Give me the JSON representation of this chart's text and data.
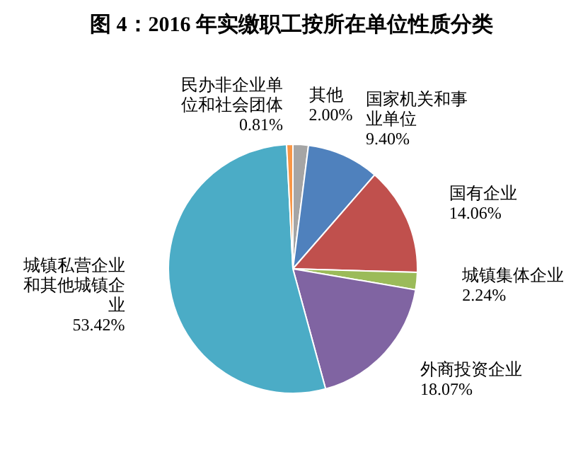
{
  "chart_data": {
    "type": "pie",
    "title": "图 4：2016 年实缴职工按所在单位性质分类",
    "categories": [
      "其他",
      "国家机关和事业单位",
      "国有企业",
      "城镇集体企业",
      "外商投资企业",
      "城镇私营企业和其他城镇企业",
      "民办非企业单位和社会团体"
    ],
    "values": [
      2.0,
      9.4,
      14.06,
      2.24,
      18.07,
      53.42,
      0.81
    ],
    "value_labels": [
      "2.00%",
      "9.40%",
      "14.06%",
      "2.24%",
      "18.07%",
      "53.42%",
      "0.81%"
    ],
    "colors": [
      "#a5a5a5",
      "#4f81bd",
      "#c0504d",
      "#9bbb59",
      "#8064a2",
      "#4bacc6",
      "#f79646"
    ]
  }
}
